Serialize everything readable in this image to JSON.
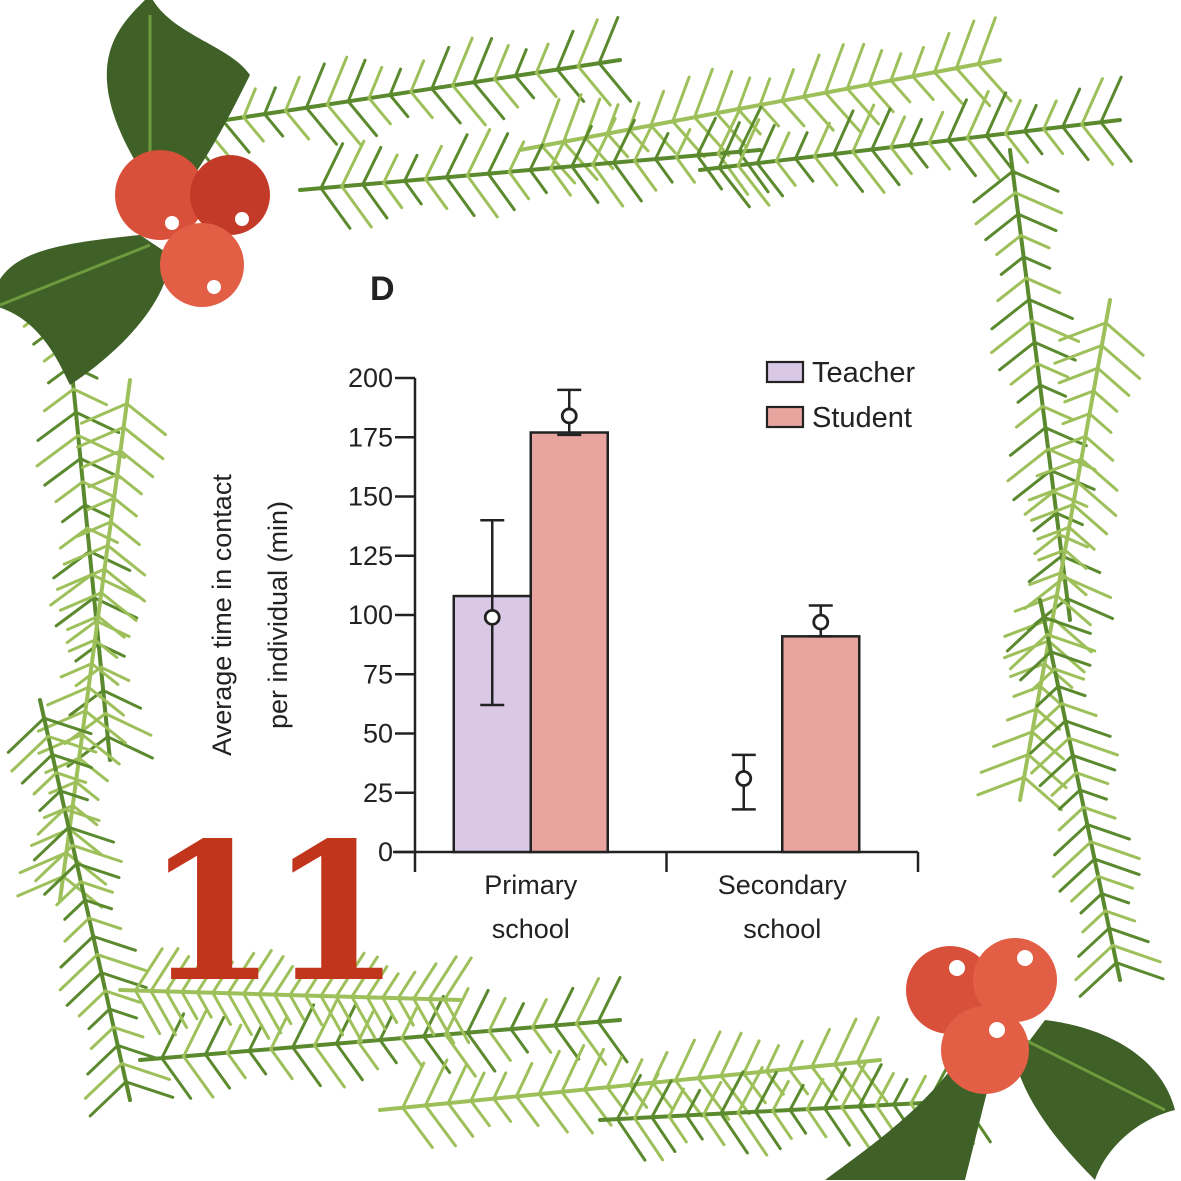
{
  "day_number": "11",
  "colors": {
    "teacher": "#d9c8e6",
    "student": "#e8a5a0",
    "axis": "#222222",
    "day_number": "#c1351d",
    "pine_dark": "#5b8a2e",
    "pine_light": "#9dc05a",
    "holly_leaf": "#3f6127",
    "berry": "#d9503a"
  },
  "decoration_icons": [
    "pine-garland-frame",
    "holly-berries-icon"
  ],
  "chart_data": {
    "type": "bar",
    "panel_label": "D",
    "ylabel_lines": [
      "Average time in contact",
      "per individual  (min)"
    ],
    "xlabel": "",
    "ylim": [
      0,
      200
    ],
    "yticks": [
      0,
      25,
      50,
      75,
      100,
      125,
      150,
      175,
      200
    ],
    "categories": [
      [
        "Primary",
        "school"
      ],
      [
        "Secondary",
        "school"
      ]
    ],
    "legend_position": "top-right",
    "grid": false,
    "series": [
      {
        "name": "Teacher",
        "color": "#d9c8e6",
        "values": [
          108,
          null
        ],
        "points": [
          99,
          31
        ],
        "err_low": [
          62,
          18
        ],
        "err_high": [
          140,
          41
        ]
      },
      {
        "name": "Student",
        "color": "#e8a5a0",
        "values": [
          177,
          91
        ],
        "points": [
          184,
          97
        ],
        "err_low": [
          176,
          91
        ],
        "err_high": [
          195,
          104
        ]
      }
    ]
  }
}
